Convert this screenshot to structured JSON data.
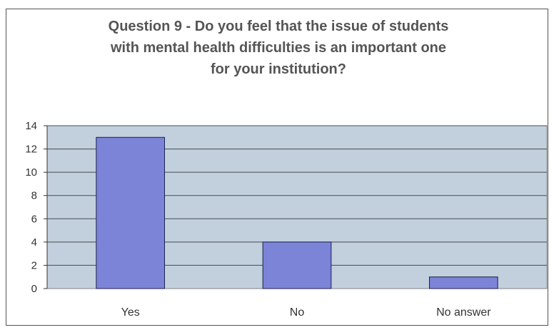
{
  "chart_data": {
    "type": "bar",
    "title_lines": [
      "Question 9 - Do you feel that the issue of students",
      "with mental health difficulties is an important one",
      "for your institution?"
    ],
    "categories": [
      "Yes",
      "No",
      "No answer"
    ],
    "values": [
      13,
      4,
      1
    ],
    "ylim": [
      0,
      14
    ],
    "y_ticks": [
      0,
      2,
      4,
      6,
      8,
      10,
      12,
      14
    ],
    "grid": true,
    "legend": "none",
    "colors": {
      "bar_fill": "#7b84d6",
      "bar_stroke": "#1f1f4f",
      "plot_bg": "#c2d0de",
      "grid": "#4a4a4a"
    }
  }
}
